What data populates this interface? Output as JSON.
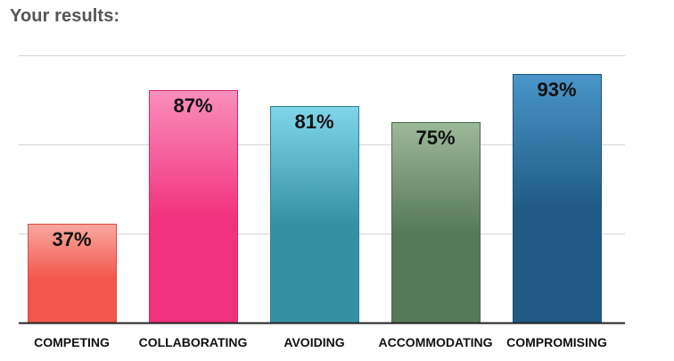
{
  "heading": "Your results:",
  "chart_data": {
    "type": "bar",
    "title": "",
    "xlabel": "",
    "ylabel": "",
    "ylim": [
      0,
      100
    ],
    "grid": true,
    "categories": [
      "COMPETING",
      "COLLABORATING",
      "AVOIDING",
      "ACCOMMODATING",
      "COMPROMISING"
    ],
    "values": [
      37,
      87,
      81,
      75,
      93
    ],
    "value_labels": [
      "37%",
      "87%",
      "81%",
      "75%",
      "93%"
    ],
    "colors": [
      {
        "top": "#f9a9a0",
        "bottom": "#f2574d",
        "border": "#e0483f"
      },
      {
        "top": "#f98fba",
        "bottom": "#f2327e",
        "border": "#d62a6c"
      },
      {
        "top": "#7fd6ea",
        "bottom": "#3590a2",
        "border": "#2b7f90"
      },
      {
        "top": "#9cb99a",
        "bottom": "#577957",
        "border": "#4a6a4a"
      },
      {
        "top": "#4a95c9",
        "bottom": "#1f5a84",
        "border": "#1c5075"
      }
    ]
  }
}
